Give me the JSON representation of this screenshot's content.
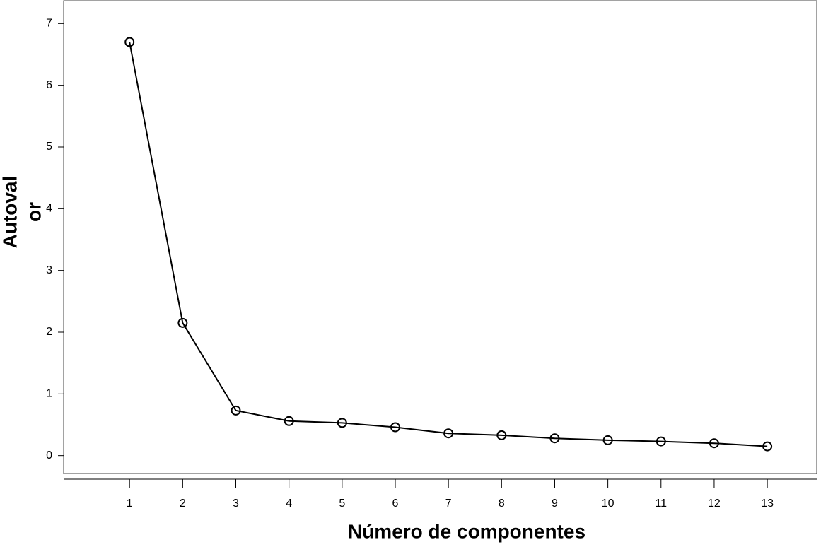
{
  "chart_data": {
    "type": "line",
    "x": [
      1,
      2,
      3,
      4,
      5,
      6,
      7,
      8,
      9,
      10,
      11,
      12,
      13
    ],
    "series": [
      {
        "color": "#000000",
        "values": [
          6.7,
          2.15,
          0.73,
          0.56,
          0.53,
          0.46,
          0.36,
          0.33,
          0.28,
          0.25,
          0.23,
          0.2,
          0.15
        ]
      }
    ],
    "xlabel": "Número de componentes",
    "ylabel": [
      "Autoval",
      "or"
    ],
    "xlim": [
      -0.24,
      13.93
    ],
    "ylim": [
      -0.29,
      7.37
    ],
    "xticks": [
      1,
      2,
      3,
      4,
      5,
      6,
      7,
      8,
      9,
      10,
      11,
      12,
      13
    ],
    "yticks": [
      0,
      1,
      2,
      3,
      4,
      5,
      6,
      7
    ],
    "marker": "circle"
  }
}
